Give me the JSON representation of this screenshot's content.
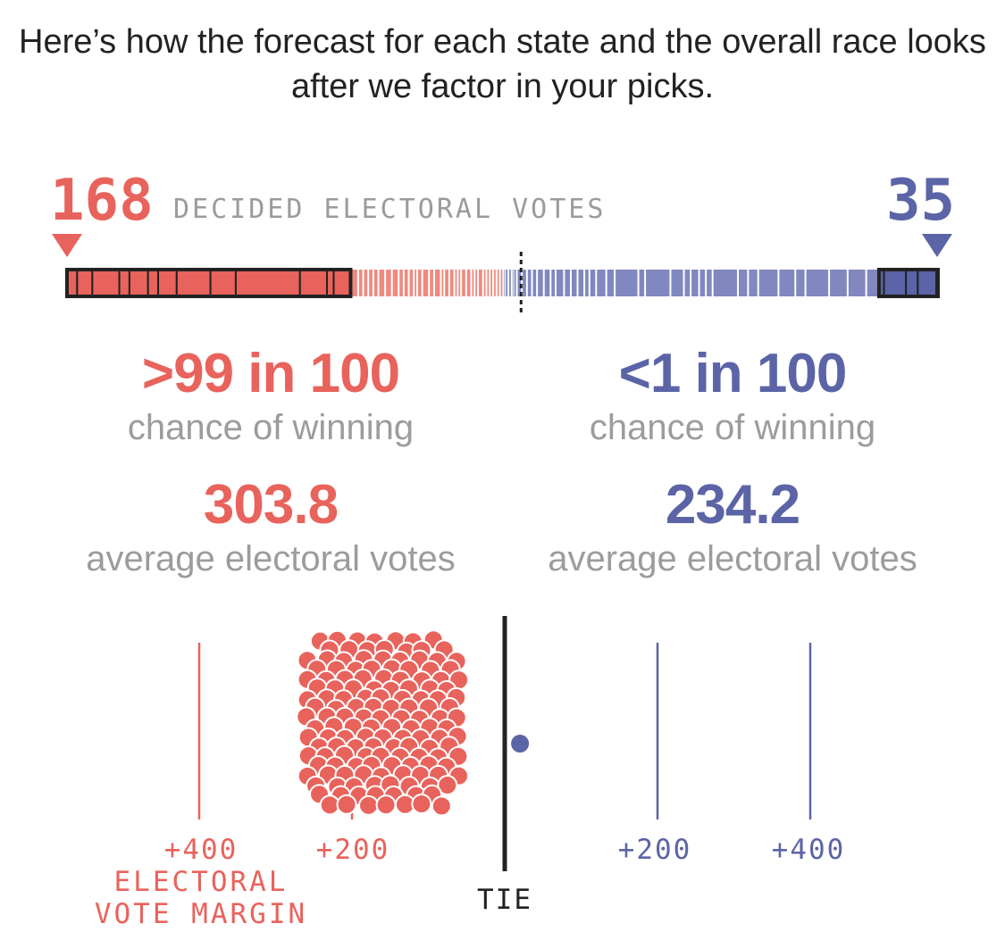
{
  "headline": "Here’s how the forecast for each state and the overall race looks after we factor in your picks.",
  "colors": {
    "red": "#e8635c",
    "red_light": "#ee8a80",
    "blue": "#5b64a6",
    "blue_light": "#8088bf",
    "gray_text": "#9c9c9c",
    "ink": "#222222"
  },
  "decided": {
    "left_value": "168",
    "label": "DECIDED ELECTORAL VOTES",
    "right_value": "35"
  },
  "candidates": [
    {
      "chance": ">99 in 100",
      "chance_label": "chance of winning",
      "avg_ev": "303.8",
      "avg_ev_label": "average electoral votes"
    },
    {
      "chance": "<1 in 100",
      "chance_label": "chance of winning",
      "avg_ev": "234.2",
      "avg_ev_label": "average electoral votes"
    }
  ],
  "chart_data": {
    "type": "scatter",
    "description_axis": "electoral vote margin",
    "x_range": [
      -520,
      520
    ],
    "ticks": [
      {
        "value": -400,
        "label": "+400"
      },
      {
        "value": -200,
        "label": "+200"
      },
      {
        "value": 200,
        "label": "+200"
      },
      {
        "value": 400,
        "label": "+400"
      }
    ],
    "tie_label": "TIE",
    "axis_title_lines": [
      "ELECTORAL",
      "VOTE MARGIN"
    ],
    "outcome_cluster_red": {
      "approx_count": 100,
      "margin_range": [
        -258,
        -55
      ]
    },
    "outcome_blue": {
      "count": 1,
      "margin": 20
    }
  },
  "bar_segments": {
    "red_decided_ev": [
      6,
      9,
      16,
      6,
      11,
      6,
      11,
      20,
      15,
      38,
      16,
      4,
      10
    ],
    "red_lean_ev": [
      5,
      3,
      3,
      3,
      3,
      4,
      4,
      4,
      3,
      3,
      3,
      2,
      3,
      4,
      3,
      4,
      2,
      3,
      3,
      2,
      2,
      3,
      3,
      2,
      2,
      3,
      2,
      2,
      2,
      2,
      2,
      2
    ],
    "blue_lean_ev": [
      1,
      2,
      2,
      1,
      2,
      3,
      3,
      3,
      3,
      4,
      4,
      3,
      5,
      4,
      4,
      4,
      3,
      4,
      6,
      5,
      14,
      4,
      15,
      8,
      4,
      5,
      4,
      4,
      15,
      6,
      6,
      12,
      10,
      6,
      14,
      11,
      11,
      7
    ],
    "blue_decided_ev": [
      3,
      13,
      7,
      11,
      1
    ]
  }
}
